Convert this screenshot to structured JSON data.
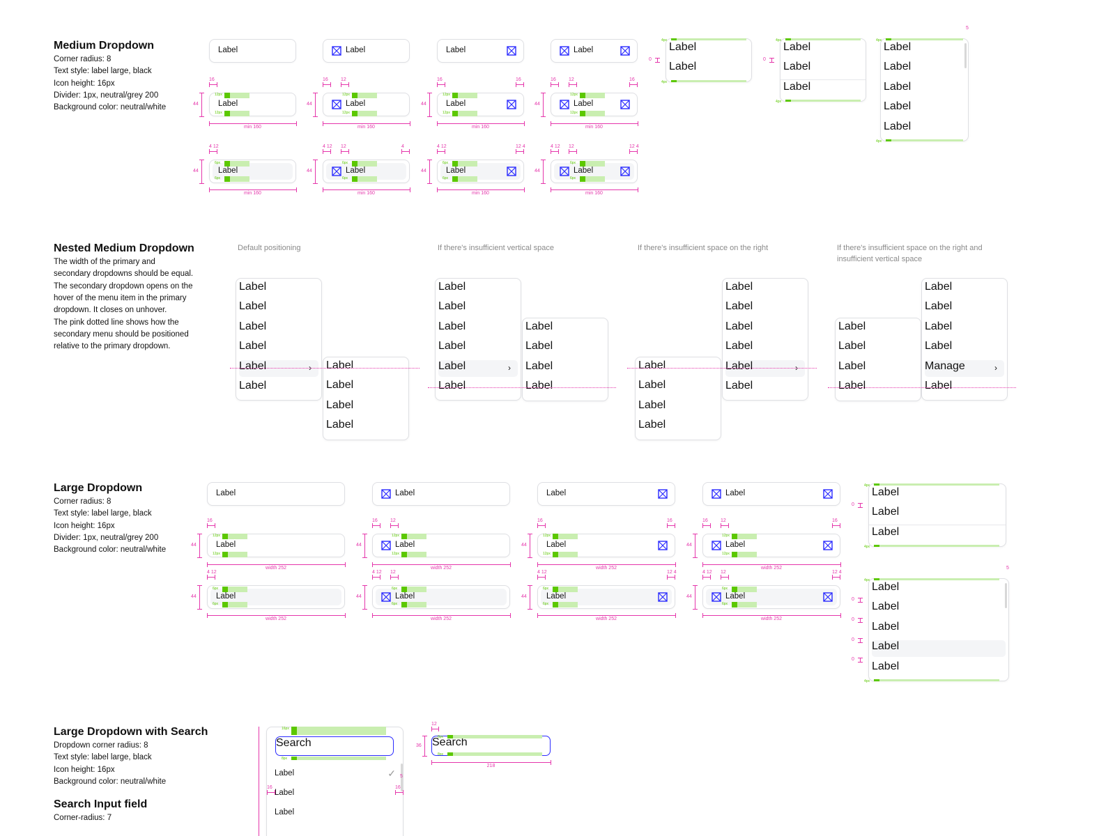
{
  "colors": {
    "accent_blue": "#2b2bff",
    "annotation_pink": "#e535ab",
    "padding_green": "#5cc800",
    "padding_green_light": "#c9eeb0",
    "hover_grey": "#f4f5f7",
    "border": "#dedfe3"
  },
  "medium": {
    "title": "Medium Dropdown",
    "specs": [
      "Corner radius: 8",
      "Text style: label large, black",
      "Icon height: 16px",
      "Divider: 1px, neutral/grey 200",
      "Background color: neutral/white"
    ],
    "variants": [
      {
        "label": "Label",
        "icon_left": false,
        "icon_right": false
      },
      {
        "label": "Label",
        "icon_left": true,
        "icon_right": false
      },
      {
        "label": "Label",
        "icon_left": false,
        "icon_right": true
      },
      {
        "label": "Label",
        "icon_left": true,
        "icon_right": true
      }
    ],
    "height_label": "44",
    "width_label": "min 160",
    "row1_pad": "12px",
    "row2_pad": "6px",
    "row1_top": [
      [
        "16"
      ],
      [
        "16",
        "12"
      ],
      [
        "16",
        "16"
      ],
      [
        "16",
        "12",
        "16"
      ]
    ],
    "row2_top": [
      [
        "4 12"
      ],
      [
        "4 12",
        "12",
        "4"
      ],
      [
        "4 12",
        "12 4"
      ],
      [
        "4 12",
        "12",
        "12 4"
      ]
    ],
    "menus": [
      {
        "items": [
          "Label",
          "Label"
        ],
        "gap_label": "0"
      },
      {
        "items": [
          "Label",
          "Label",
          "Label"
        ],
        "gap_label": "0",
        "divider": true
      },
      {
        "items": [
          "Label",
          "Label",
          "Label",
          "Label",
          "Label"
        ],
        "scroll_label": "5"
      }
    ],
    "menu_pad_label": "4px"
  },
  "nested": {
    "title": "Nested Medium Dropdown",
    "specs": [
      "The width of the primary and",
      "secondary dropdowns should be equal.",
      "The secondary dropdown opens on the",
      "hover of the menu item in the primary",
      "dropdown. It closes on unhover.",
      "The pink dotted line shows how the",
      "secondary menu should be positioned",
      "relative to the primary dropdown."
    ],
    "cases": [
      {
        "caption": "Default positioning",
        "primary": [
          "Label",
          "Label",
          "Label",
          "Label",
          "Label",
          "Label"
        ],
        "hover_index": 4,
        "secondary": [
          "Label",
          "Label",
          "Label",
          "Label"
        ]
      },
      {
        "caption": "If there's insufficient vertical space",
        "primary": [
          "Label",
          "Label",
          "Label",
          "Label",
          "Label",
          "Label"
        ],
        "hover_index": 4,
        "secondary": [
          "Label",
          "Label",
          "Label",
          "Label"
        ]
      },
      {
        "caption": "If there's insufficient space on the right",
        "primary": [
          "Label",
          "Label",
          "Label",
          "Label",
          "Label",
          "Label"
        ],
        "hover_index": 4,
        "secondary": [
          "Label",
          "Label",
          "Label",
          "Label"
        ]
      },
      {
        "caption": "If there's insufficient space on the right and insufficient vertical space",
        "primary": [
          "Label",
          "Label",
          "Label",
          "Label",
          "Manage",
          "Label"
        ],
        "hover_index": 4,
        "secondary": [
          "Label",
          "Label",
          "Label",
          "Label"
        ]
      }
    ]
  },
  "large": {
    "title": "Large Dropdown",
    "specs": [
      "Corner radius: 8",
      "Text style: label large, black",
      "Icon height: 16px",
      "Divider: 1px, neutral/grey 200",
      "Background color: neutral/white"
    ],
    "variants": [
      {
        "label": "Label",
        "icon_left": false,
        "icon_right": false
      },
      {
        "label": "Label",
        "icon_left": true,
        "icon_right": false
      },
      {
        "label": "Label",
        "icon_left": false,
        "icon_right": true
      },
      {
        "label": "Label",
        "icon_left": true,
        "icon_right": true
      }
    ],
    "height_label": "44",
    "width_label": "width 252",
    "row1_pad": "12px",
    "row2_pad": "6px",
    "row1_top": [
      [
        "16"
      ],
      [
        "16",
        "12"
      ],
      [
        "16",
        "16"
      ],
      [
        "16",
        "12",
        "16"
      ]
    ],
    "row2_top": [
      [
        "4 12"
      ],
      [
        "4 12",
        "12"
      ],
      [
        "4 12",
        "12 4"
      ],
      [
        "4 12",
        "12",
        "12 4"
      ]
    ],
    "menus": [
      {
        "items": [
          "Label",
          "Label",
          "Label"
        ],
        "divider": true,
        "gap_label": "0"
      },
      {
        "items": [
          "Label",
          "Label",
          "Label",
          "Label",
          "Label"
        ],
        "hover_index": 3,
        "scroll_label": "5",
        "gap_label": "0"
      }
    ]
  },
  "search": {
    "title": "Large Dropdown with Search",
    "specs": [
      "Dropdown corner radius: 8",
      "Text style: label large, black",
      "Icon height: 16px",
      "Background color: neutral/white"
    ],
    "placeholder": "Search",
    "items": [
      "Label",
      "Label",
      "Label"
    ],
    "selected_index": 0,
    "top_pad": "16px",
    "bottom_pad": "8px",
    "side_pad": "16",
    "scroll_label": "5",
    "input_title": "Search Input field",
    "input_specs": [
      "Corner-radius: 7"
    ],
    "input_pad": "8px",
    "input_left": "12",
    "input_height": "36",
    "input_width": "218"
  }
}
